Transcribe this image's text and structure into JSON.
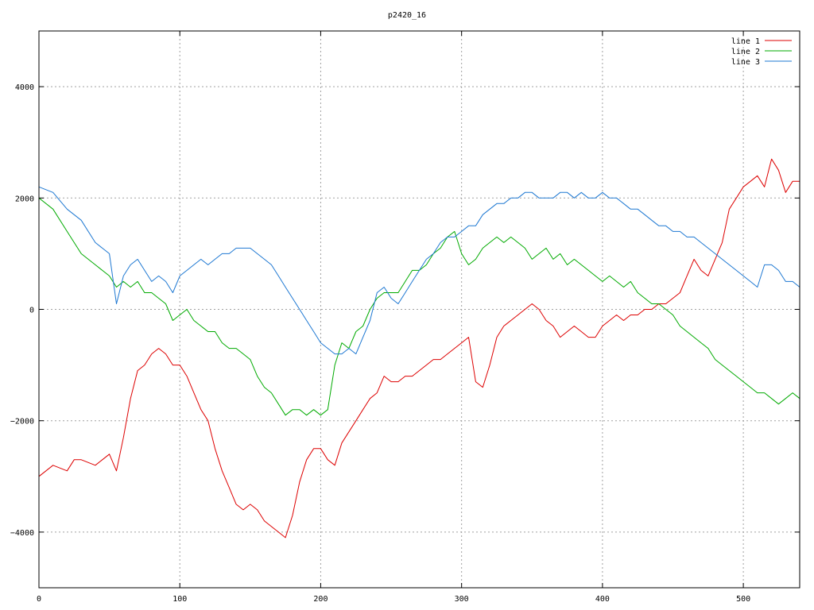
{
  "chart_data": {
    "type": "line",
    "title": "p2420_16",
    "xlabel": "",
    "ylabel": "",
    "xlim": [
      0,
      540
    ],
    "ylim": [
      -5000,
      5000
    ],
    "xticks": [
      0,
      100,
      200,
      300,
      400,
      500
    ],
    "yticks": [
      -4000,
      -2000,
      0,
      2000,
      4000
    ],
    "xtick_labels": [
      "0",
      "100",
      "200",
      "300",
      "400",
      "500"
    ],
    "ytick_labels": [
      "−4000",
      "−2000",
      "0",
      "2000",
      "4000"
    ],
    "grid": true,
    "legend_position": "top-right",
    "series": [
      {
        "name": "line 1",
        "color": "#dd0000",
        "x": [
          0,
          10,
          20,
          25,
          30,
          40,
          50,
          55,
          60,
          65,
          70,
          75,
          80,
          85,
          90,
          95,
          100,
          105,
          110,
          115,
          120,
          125,
          130,
          135,
          140,
          145,
          150,
          155,
          160,
          165,
          170,
          175,
          180,
          185,
          190,
          195,
          200,
          205,
          210,
          215,
          220,
          225,
          230,
          235,
          240,
          245,
          250,
          255,
          260,
          265,
          270,
          275,
          280,
          285,
          290,
          295,
          300,
          305,
          310,
          315,
          320,
          325,
          330,
          335,
          340,
          345,
          350,
          355,
          360,
          365,
          370,
          375,
          380,
          385,
          390,
          395,
          400,
          405,
          410,
          415,
          420,
          425,
          430,
          435,
          440,
          445,
          450,
          455,
          460,
          465,
          470,
          475,
          480,
          485,
          490,
          495,
          500,
          505,
          510,
          515,
          520,
          525,
          530,
          535,
          540
        ],
        "y": [
          -3000,
          -2800,
          -2900,
          -2700,
          -2700,
          -2800,
          -2600,
          -2900,
          -2300,
          -1600,
          -1100,
          -1000,
          -800,
          -700,
          -800,
          -1000,
          -1000,
          -1200,
          -1500,
          -1800,
          -2000,
          -2500,
          -2900,
          -3200,
          -3500,
          -3600,
          -3500,
          -3600,
          -3800,
          -3900,
          -4000,
          -4100,
          -3700,
          -3100,
          -2700,
          -2500,
          -2500,
          -2700,
          -2800,
          -2400,
          -2200,
          -2000,
          -1800,
          -1600,
          -1500,
          -1200,
          -1300,
          -1300,
          -1200,
          -1200,
          -1100,
          -1000,
          -900,
          -900,
          -800,
          -700,
          -600,
          -500,
          -1300,
          -1400,
          -1000,
          -500,
          -300,
          -200,
          -100,
          0,
          100,
          0,
          -200,
          -300,
          -500,
          -400,
          -300,
          -400,
          -500,
          -500,
          -300,
          -200,
          -100,
          -200,
          -100,
          -100,
          0,
          0,
          100,
          100,
          200,
          300,
          600,
          900,
          700,
          600,
          900,
          1200,
          1800,
          2000,
          2200,
          2300,
          2400,
          2200,
          2700,
          2500,
          2100,
          2300,
          2300
        ]
      },
      {
        "name": "line 2",
        "color": "#00aa00",
        "x": [
          0,
          10,
          20,
          25,
          30,
          40,
          50,
          55,
          60,
          65,
          70,
          75,
          80,
          85,
          90,
          95,
          100,
          105,
          110,
          115,
          120,
          125,
          130,
          135,
          140,
          145,
          150,
          155,
          160,
          165,
          170,
          175,
          180,
          185,
          190,
          195,
          200,
          205,
          210,
          215,
          220,
          225,
          230,
          235,
          240,
          245,
          250,
          255,
          260,
          265,
          270,
          275,
          280,
          285,
          290,
          295,
          300,
          305,
          310,
          315,
          320,
          325,
          330,
          335,
          340,
          345,
          350,
          355,
          360,
          365,
          370,
          375,
          380,
          385,
          390,
          395,
          400,
          405,
          410,
          415,
          420,
          425,
          430,
          435,
          440,
          445,
          450,
          455,
          460,
          465,
          470,
          475,
          480,
          485,
          490,
          495,
          500,
          505,
          510,
          515,
          520,
          525,
          530,
          535,
          540
        ],
        "y": [
          2000,
          1800,
          1400,
          1200,
          1000,
          800,
          600,
          400,
          500,
          400,
          500,
          300,
          300,
          200,
          100,
          -200,
          -100,
          0,
          -200,
          -300,
          -400,
          -400,
          -600,
          -700,
          -700,
          -800,
          -900,
          -1200,
          -1400,
          -1500,
          -1700,
          -1900,
          -1800,
          -1800,
          -1900,
          -1800,
          -1900,
          -1800,
          -1000,
          -600,
          -700,
          -400,
          -300,
          0,
          200,
          300,
          300,
          300,
          500,
          700,
          700,
          800,
          1000,
          1100,
          1300,
          1400,
          1000,
          800,
          900,
          1100,
          1200,
          1300,
          1200,
          1300,
          1200,
          1100,
          900,
          1000,
          1100,
          900,
          1000,
          800,
          900,
          800,
          700,
          600,
          500,
          600,
          500,
          400,
          500,
          300,
          200,
          100,
          100,
          0,
          -100,
          -300,
          -400,
          -500,
          -600,
          -700,
          -900,
          -1000,
          -1100,
          -1200,
          -1300,
          -1400,
          -1500,
          -1500,
          -1600,
          -1700,
          -1600,
          -1500,
          -1600
        ]
      },
      {
        "name": "line 3",
        "color": "#1e78d2",
        "x": [
          0,
          10,
          20,
          25,
          30,
          40,
          50,
          55,
          60,
          65,
          70,
          75,
          80,
          85,
          90,
          95,
          100,
          105,
          110,
          115,
          120,
          125,
          130,
          135,
          140,
          145,
          150,
          155,
          160,
          165,
          170,
          175,
          180,
          185,
          190,
          195,
          200,
          205,
          210,
          215,
          220,
          225,
          230,
          235,
          240,
          245,
          250,
          255,
          260,
          265,
          270,
          275,
          280,
          285,
          290,
          295,
          300,
          305,
          310,
          315,
          320,
          325,
          330,
          335,
          340,
          345,
          350,
          355,
          360,
          365,
          370,
          375,
          380,
          385,
          390,
          395,
          400,
          405,
          410,
          415,
          420,
          425,
          430,
          435,
          440,
          445,
          450,
          455,
          460,
          465,
          470,
          475,
          480,
          485,
          490,
          495,
          500,
          505,
          510,
          515,
          520,
          525,
          530,
          535,
          540
        ],
        "y": [
          2200,
          2100,
          1800,
          1700,
          1600,
          1200,
          1000,
          100,
          600,
          800,
          900,
          700,
          500,
          600,
          500,
          300,
          600,
          700,
          800,
          900,
          800,
          900,
          1000,
          1000,
          1100,
          1100,
          1100,
          1000,
          900,
          800,
          600,
          400,
          200,
          0,
          -200,
          -400,
          -600,
          -700,
          -800,
          -800,
          -700,
          -800,
          -500,
          -200,
          300,
          400,
          200,
          100,
          300,
          500,
          700,
          900,
          1000,
          1200,
          1300,
          1300,
          1400,
          1500,
          1500,
          1700,
          1800,
          1900,
          1900,
          2000,
          2000,
          2100,
          2100,
          2000,
          2000,
          2000,
          2100,
          2100,
          2000,
          2100,
          2000,
          2000,
          2100,
          2000,
          2000,
          1900,
          1800,
          1800,
          1700,
          1600,
          1500,
          1500,
          1400,
          1400,
          1300,
          1300,
          1200,
          1100,
          1000,
          900,
          800,
          700,
          600,
          500,
          400,
          800,
          800,
          700,
          500,
          500,
          400
        ]
      }
    ]
  }
}
